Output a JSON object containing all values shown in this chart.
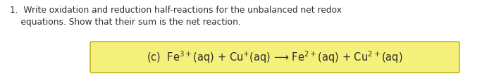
{
  "line1": "1.  Write oxidation and reduction half-reactions for the unbalanced net redox",
  "line2": "    equations. Show that their sum is the net reaction.",
  "box_text": "(c)  Fe$^{3+}$(aq) + Cu$^{+}$(aq) ⟶ Fe$^{2+}$(aq) + Cu$^{2+}$(aq)",
  "text_color": "#2d2d2d",
  "body_font_size": 8.8,
  "eq_font_size": 10.5,
  "box_bg_color": "#f5f07a",
  "box_edge_color": "#b8a800",
  "background_color": "#ffffff",
  "fig_width": 6.84,
  "fig_height": 1.05,
  "dpi": 100
}
